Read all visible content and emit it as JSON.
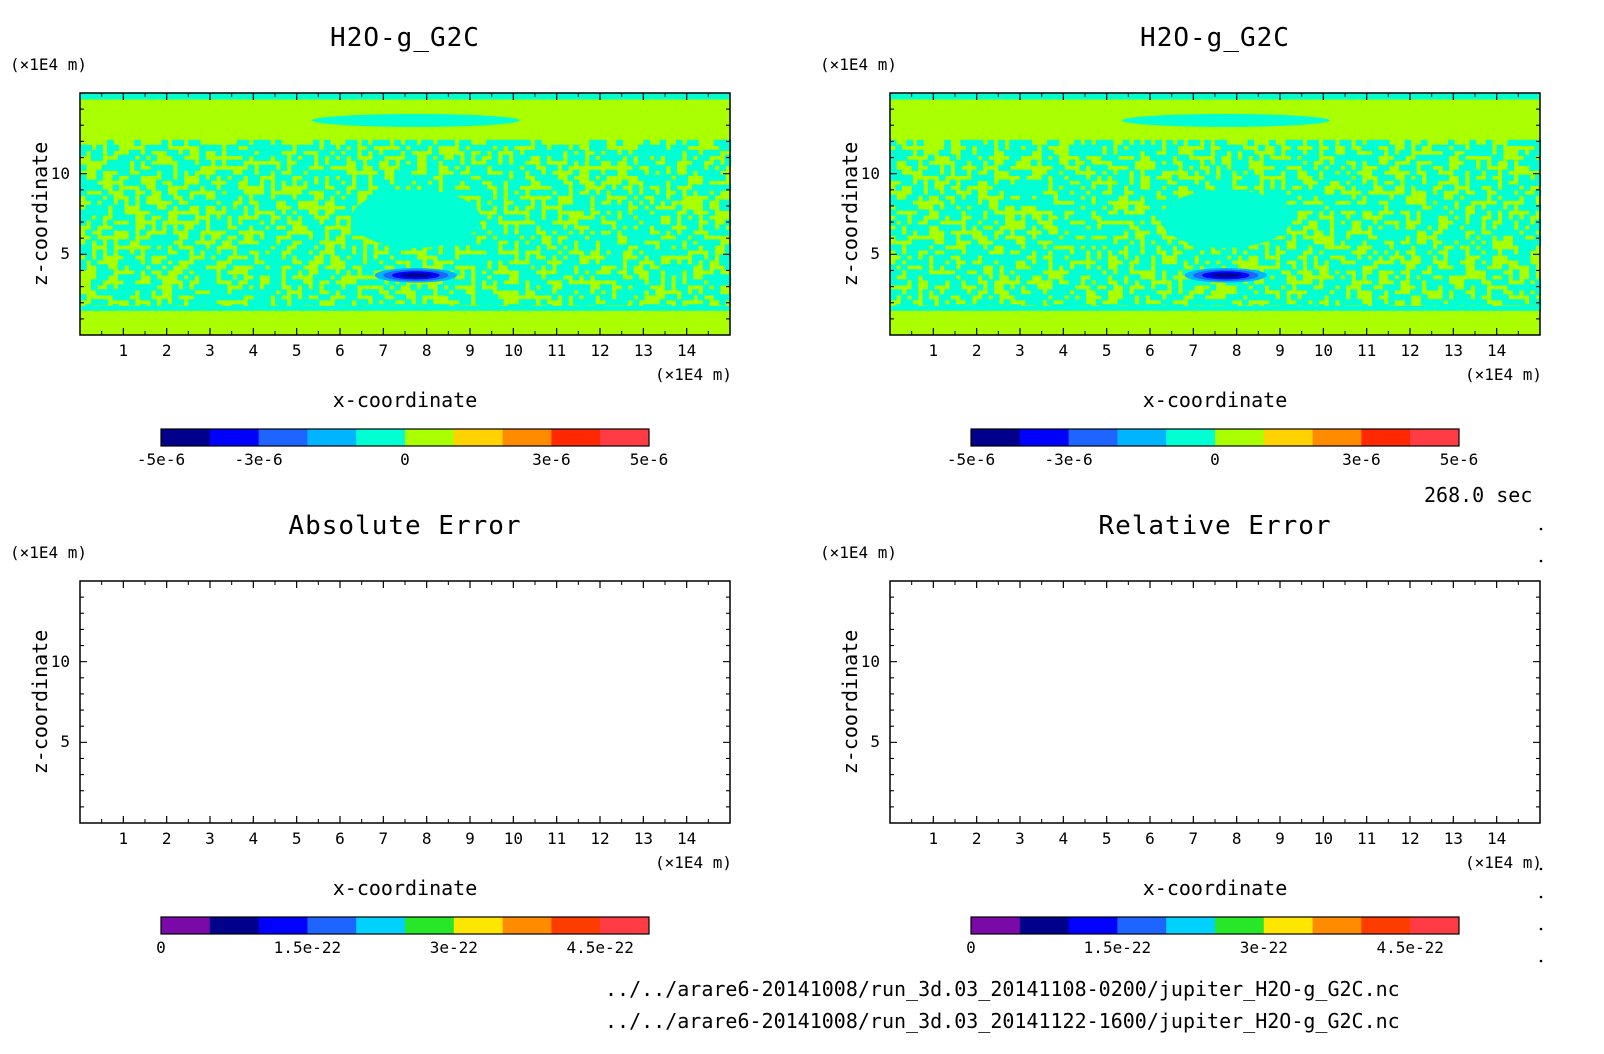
{
  "time_label": "268.0 sec",
  "file_paths": [
    "../../arare6-20141008/run_3d.03_20141108-0200/jupiter_H2O-g_G2C.nc",
    "../../arare6-20141008/run_3d.03_20141122-1600/jupiter_H2O-g_G2C.nc"
  ],
  "chart_data": [
    {
      "type": "heatmap",
      "title": "H2O-g_G2C",
      "xlabel": "x-coordinate",
      "ylabel": "z-coordinate",
      "x_unit": "(×1E4 m)",
      "y_unit": "(×1E4 m)",
      "xlim": [
        0,
        15
      ],
      "ylim": [
        0,
        15
      ],
      "xticks": [
        "1",
        "2",
        "3",
        "4",
        "5",
        "6",
        "7",
        "8",
        "9",
        "10",
        "11",
        "12",
        "13",
        "14"
      ],
      "yticks": [
        "5",
        "10"
      ],
      "colorbar": {
        "colors": [
          "#00008b",
          "#0000ff",
          "#1e64ff",
          "#00b4ff",
          "#00ffd2",
          "#aaff00",
          "#ffd200",
          "#ff8c00",
          "#ff2800",
          "#ff3c46"
        ],
        "labels": [
          "-5e-6",
          "-3e-6",
          "0",
          "3e-6",
          "5e-6"
        ],
        "label_values": [
          -5e-06,
          -3e-06,
          0,
          3e-06,
          5e-06
        ],
        "range": [
          -5e-06,
          5e-06
        ]
      },
      "field": {
        "background_value": 5e-07,
        "upper_layer_value": -5e-07,
        "thermal_center": [
          7.75,
          7.2
        ],
        "thermal_radius": [
          1.5,
          1.8
        ],
        "thermal_value": -5e-07,
        "cold_core_center": [
          7.75,
          3.7
        ],
        "cold_core_min": -5e-06
      }
    },
    {
      "type": "heatmap",
      "title": "H2O-g_G2C",
      "xlabel": "x-coordinate",
      "ylabel": "z-coordinate",
      "x_unit": "(×1E4 m)",
      "y_unit": "(×1E4 m)",
      "xlim": [
        0,
        15
      ],
      "ylim": [
        0,
        15
      ],
      "xticks": [
        "1",
        "2",
        "3",
        "4",
        "5",
        "6",
        "7",
        "8",
        "9",
        "10",
        "11",
        "12",
        "13",
        "14"
      ],
      "yticks": [
        "5",
        "10"
      ],
      "colorbar": {
        "colors": [
          "#00008b",
          "#0000ff",
          "#1e64ff",
          "#00b4ff",
          "#00ffd2",
          "#aaff00",
          "#ffd200",
          "#ff8c00",
          "#ff2800",
          "#ff3c46"
        ],
        "labels": [
          "-5e-6",
          "-3e-6",
          "0",
          "3e-6",
          "5e-6"
        ],
        "label_values": [
          -5e-06,
          -3e-06,
          0,
          3e-06,
          5e-06
        ],
        "range": [
          -5e-06,
          5e-06
        ]
      },
      "field": {
        "background_value": 5e-07,
        "upper_layer_value": -5e-07,
        "thermal_center": [
          7.75,
          7.2
        ],
        "thermal_radius": [
          1.5,
          1.8
        ],
        "thermal_value": -5e-07,
        "cold_core_center": [
          7.75,
          3.7
        ],
        "cold_core_min": -5e-06
      }
    },
    {
      "type": "heatmap",
      "title": "Absolute Error",
      "xlabel": "x-coordinate",
      "ylabel": "z-coordinate",
      "x_unit": "(×1E4 m)",
      "y_unit": "(×1E4 m)",
      "xlim": [
        0,
        15
      ],
      "ylim": [
        0,
        15
      ],
      "xticks": [
        "1",
        "2",
        "3",
        "4",
        "5",
        "6",
        "7",
        "8",
        "9",
        "10",
        "11",
        "12",
        "13",
        "14"
      ],
      "yticks": [
        "5",
        "10"
      ],
      "colorbar": {
        "colors": [
          "#7a0aa8",
          "#00008b",
          "#0000ff",
          "#1e64ff",
          "#00d2ff",
          "#28e628",
          "#ffe600",
          "#ff8c00",
          "#ff3c00",
          "#ff3c46"
        ],
        "labels": [
          "0",
          "1.5e-22",
          "3e-22",
          "4.5e-22"
        ],
        "label_values": [
          0,
          1.5e-22,
          3e-22,
          4.5e-22
        ],
        "range": [
          0,
          5e-22
        ]
      },
      "field": null
    },
    {
      "type": "heatmap",
      "title": "Relative Error",
      "xlabel": "x-coordinate",
      "ylabel": "z-coordinate",
      "x_unit": "(×1E4 m)",
      "y_unit": "(×1E4 m)",
      "xlim": [
        0,
        15
      ],
      "ylim": [
        0,
        15
      ],
      "xticks": [
        "1",
        "2",
        "3",
        "4",
        "5",
        "6",
        "7",
        "8",
        "9",
        "10",
        "11",
        "12",
        "13",
        "14"
      ],
      "yticks": [
        "5",
        "10"
      ],
      "colorbar": {
        "colors": [
          "#7a0aa8",
          "#00008b",
          "#0000ff",
          "#1e64ff",
          "#00d2ff",
          "#28e628",
          "#ffe600",
          "#ff8c00",
          "#ff3c00",
          "#ff3c46"
        ],
        "labels": [
          "0",
          "1.5e-22",
          "3e-22",
          "4.5e-22"
        ],
        "label_values": [
          0,
          1.5e-22,
          3e-22,
          4.5e-22
        ],
        "range": [
          0,
          5e-22
        ]
      },
      "field": null
    }
  ]
}
